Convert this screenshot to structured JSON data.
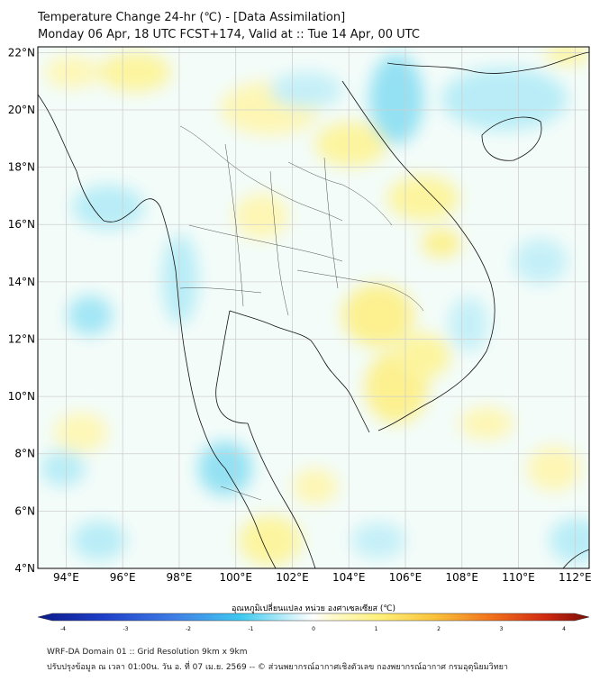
{
  "header": {
    "title_line1": "Temperature Change 24-hr (℃) - [Data Assimilation]",
    "title_line2": "Monday 06 Apr, 18 UTC FCST+174, Valid at :: Tue 14 Apr, 00 UTC"
  },
  "map": {
    "lon_labels": [
      "94°E",
      "96°E",
      "98°E",
      "100°E",
      "102°E",
      "104°E",
      "106°E",
      "108°E",
      "110°E",
      "112°E"
    ],
    "lat_labels": [
      "22°N",
      "20°N",
      "18°N",
      "16°N",
      "14°N",
      "12°N",
      "10°N",
      "8°N",
      "6°N",
      "4°N"
    ],
    "lon_range": [
      93,
      112.5
    ],
    "lat_range": [
      4,
      22.2
    ],
    "colors": {
      "land_outline": "#111111",
      "grid": "#cfcfcf",
      "warm": "#fdf49a",
      "cool": "#b6ecf7"
    }
  },
  "colorbar": {
    "title": "อุณหภูมิเปลี่ยนแปลง หน่วย องศาเซลเซียส (℃)",
    "ticks": [
      "-4",
      "-3",
      "-2",
      "-1",
      "0",
      "1",
      "2",
      "3",
      "4"
    ],
    "range": [
      -4,
      4
    ]
  },
  "footer": {
    "line1": "WRF-DA Domain 01 :: Grid Resolution 9km x 9km",
    "line2": "ปรับปรุงข้อมูล ณ เวลา 01:00น. วัน อ. ที่ 07 เม.ย. 2569 -- © ส่วนพยากรณ์อากาศเชิงตัวเลข กองพยากรณ์อากาศ กรมอุตุนิยมวิทยา"
  }
}
